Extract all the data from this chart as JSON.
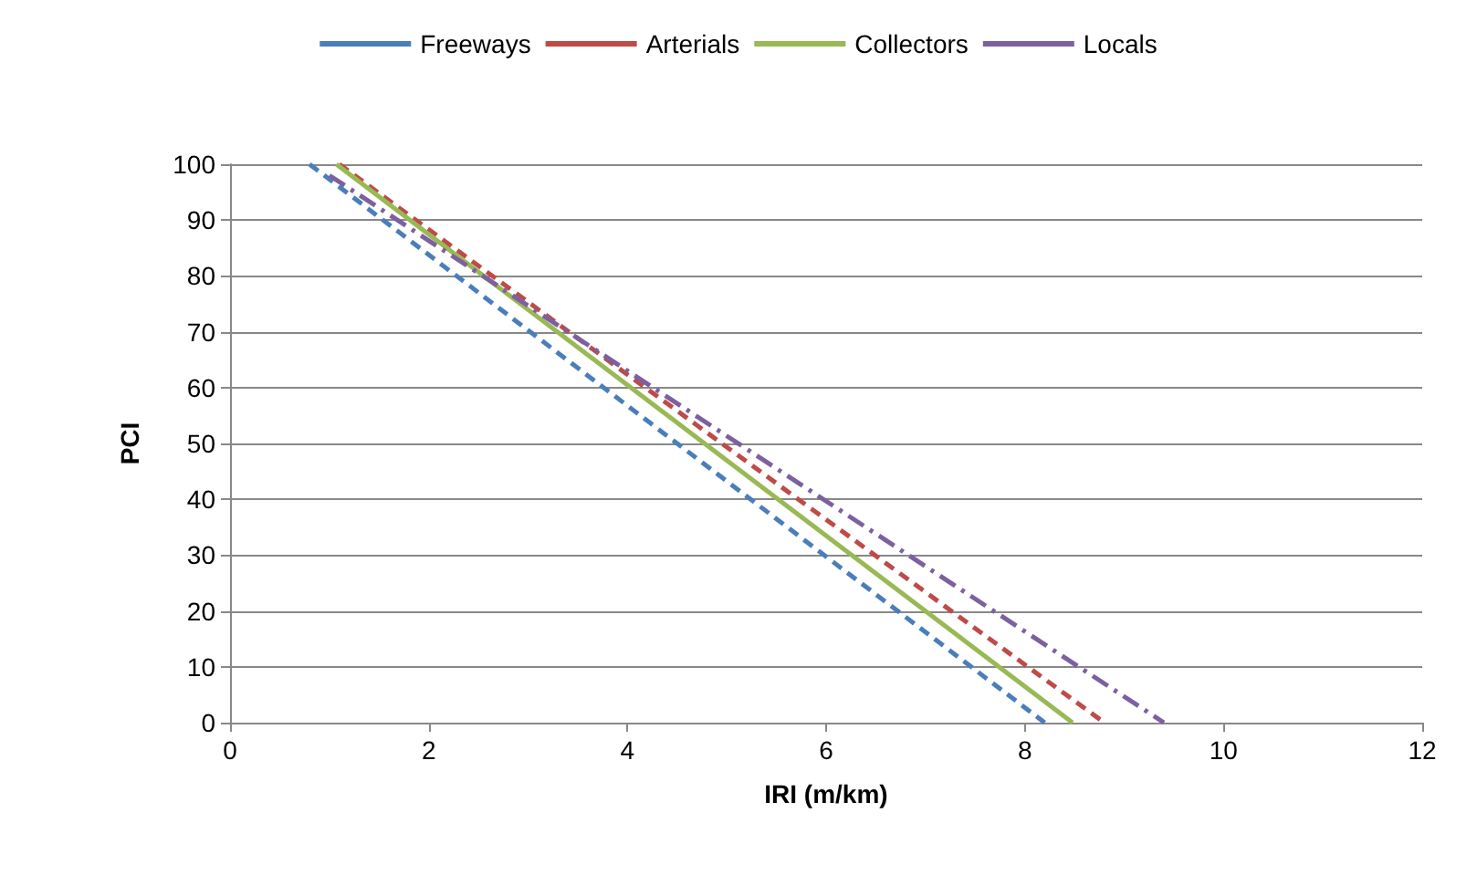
{
  "chart_data": {
    "type": "line",
    "xlabel": "IRI (m/km)",
    "ylabel": "PCI",
    "xlim": [
      0,
      12
    ],
    "xticks": [
      0,
      2,
      4,
      6,
      8,
      10,
      12
    ],
    "ylim": [
      0,
      100
    ],
    "yticks": [
      0,
      10,
      20,
      30,
      40,
      50,
      60,
      70,
      80,
      90,
      100
    ],
    "grid": "y",
    "legend": "top",
    "marker": "none",
    "series": [
      {
        "name": "Freeways",
        "color": "#4a7ebb",
        "line_style": "dashed",
        "x": [
          0.8,
          8.2
        ],
        "values": [
          100,
          0
        ]
      },
      {
        "name": "Arterials",
        "color": "#be4b48",
        "line_style": "dashed",
        "x": [
          1.1,
          8.8
        ],
        "values": [
          100,
          0
        ]
      },
      {
        "name": "Collectors",
        "color": "#98b954",
        "line_style": "solid",
        "x": [
          1.07,
          8.48
        ],
        "values": [
          100,
          0
        ]
      },
      {
        "name": "Locals",
        "color": "#7d60a0",
        "line_style": "dashdot",
        "x": [
          1.0,
          9.4
        ],
        "values": [
          98,
          0
        ]
      }
    ]
  }
}
